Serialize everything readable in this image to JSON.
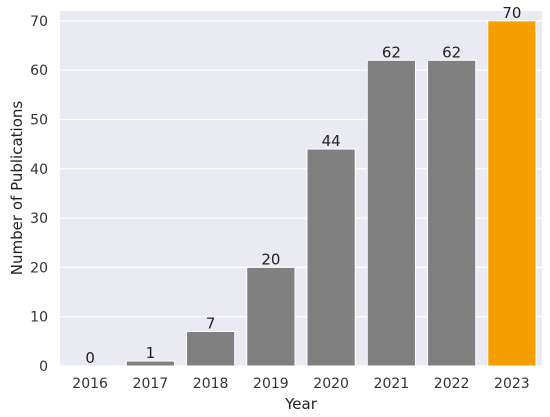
{
  "chart_data": {
    "type": "bar",
    "title": "",
    "xlabel": "Year",
    "ylabel": "Number of Publications",
    "categories": [
      "2016",
      "2017",
      "2018",
      "2019",
      "2020",
      "2021",
      "2022",
      "2023"
    ],
    "values": [
      0,
      1,
      7,
      20,
      44,
      62,
      62,
      70
    ],
    "data_labels": [
      "0",
      "1",
      "7",
      "20",
      "44",
      "62",
      "62",
      "70"
    ],
    "bar_colors": [
      "#808080",
      "#808080",
      "#808080",
      "#808080",
      "#808080",
      "#808080",
      "#808080",
      "#f59e00"
    ],
    "ylim": [
      0,
      72
    ],
    "yticks": [
      0,
      10,
      20,
      30,
      40,
      50,
      60,
      70
    ],
    "grid": true,
    "background_color": "#eaeaf2",
    "grid_color": "#ffffff"
  }
}
